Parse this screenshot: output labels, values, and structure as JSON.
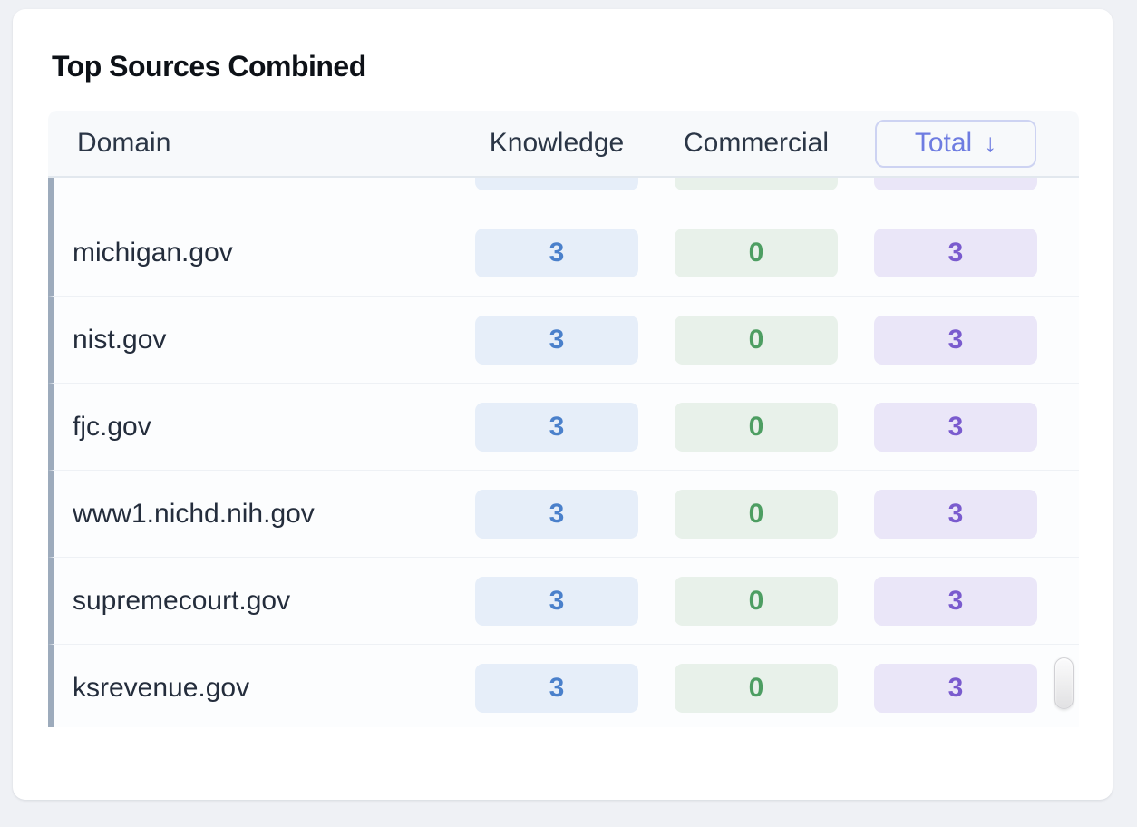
{
  "card": {
    "title": "Top Sources Combined"
  },
  "table": {
    "header": {
      "domain": "Domain",
      "knowledge": "Knowledge",
      "commercial": "Commercial",
      "total": "Total",
      "sort_arrow": "↓"
    },
    "rows": [
      {
        "partial": true,
        "domain": "",
        "knowledge": "",
        "commercial": "",
        "total": ""
      },
      {
        "partial": false,
        "domain": "michigan.gov",
        "knowledge": "3",
        "commercial": "0",
        "total": "3"
      },
      {
        "partial": false,
        "domain": "nist.gov",
        "knowledge": "3",
        "commercial": "0",
        "total": "3"
      },
      {
        "partial": false,
        "domain": "fjc.gov",
        "knowledge": "3",
        "commercial": "0",
        "total": "3"
      },
      {
        "partial": false,
        "domain": "www1.nichd.nih.gov",
        "knowledge": "3",
        "commercial": "0",
        "total": "3"
      },
      {
        "partial": false,
        "domain": "supremecourt.gov",
        "knowledge": "3",
        "commercial": "0",
        "total": "3"
      },
      {
        "partial": false,
        "domain": "ksrevenue.gov",
        "knowledge": "3",
        "commercial": "0",
        "total": "3"
      }
    ],
    "colors": {
      "knowledge_bg": "#e6eef9",
      "knowledge_text": "#4a80cb",
      "commercial_bg": "#e8f1ea",
      "commercial_text": "#4d9e62",
      "total_bg": "#eae6f8",
      "total_text": "#7a5bce",
      "row_accent_bar": "#9dabbc",
      "sort_button_text": "#6e7ce1",
      "sort_button_border": "#cdd3f2"
    }
  }
}
